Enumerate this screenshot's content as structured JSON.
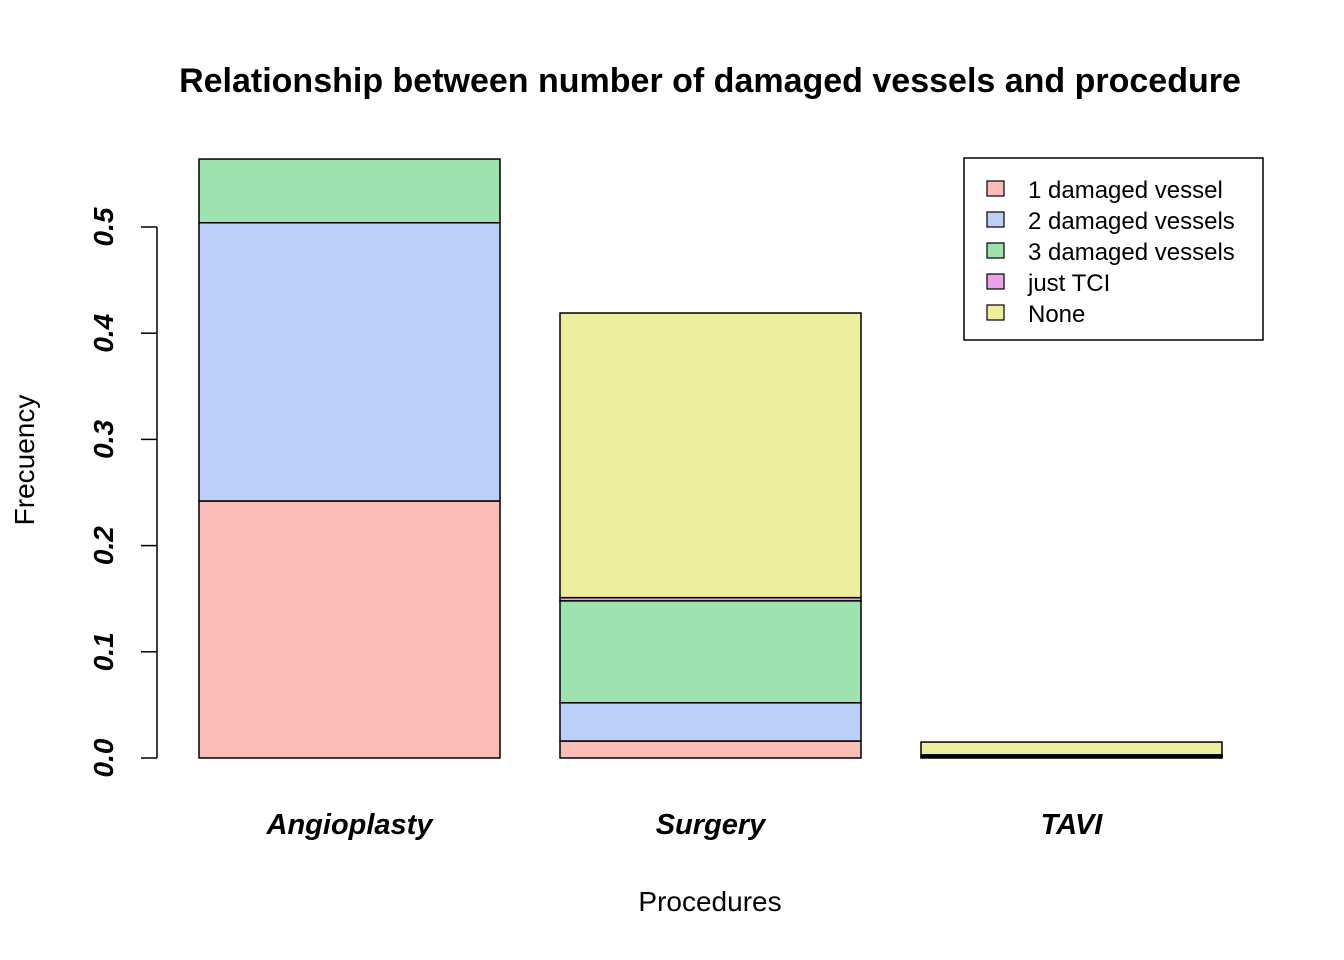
{
  "chart_data": {
    "type": "bar",
    "stacked": true,
    "title": "Relationship between number of damaged vessels and procedure",
    "xlabel": "Procedures",
    "ylabel": "Frecuency",
    "categories": [
      "Angioplasty",
      "Surgery",
      "TAVI"
    ],
    "ylim": [
      0,
      0.57
    ],
    "yticks": [
      0.0,
      0.1,
      0.2,
      0.3,
      0.4,
      0.5
    ],
    "ytick_labels": [
      "0.0",
      "0.1",
      "0.2",
      "0.3",
      "0.4",
      "0.5"
    ],
    "grid": false,
    "legend_position": "top-right",
    "series": [
      {
        "name": "1  damaged vessel",
        "color": "#FBBDB8",
        "values": [
          0.242,
          0.016,
          0.001
        ]
      },
      {
        "name": "2 damaged vessels",
        "color": "#BCCFF9",
        "values": [
          0.262,
          0.036,
          0.001
        ]
      },
      {
        "name": "3 damaged vessels",
        "color": "#9EE3AF",
        "values": [
          0.06,
          0.096,
          0.001
        ]
      },
      {
        "name": "just TCI",
        "color": "#EAA2E9",
        "values": [
          0.0,
          0.003,
          0.0
        ]
      },
      {
        "name": "None",
        "color": "#EDEE9E",
        "values": [
          0.0,
          0.268,
          0.012
        ]
      }
    ]
  }
}
